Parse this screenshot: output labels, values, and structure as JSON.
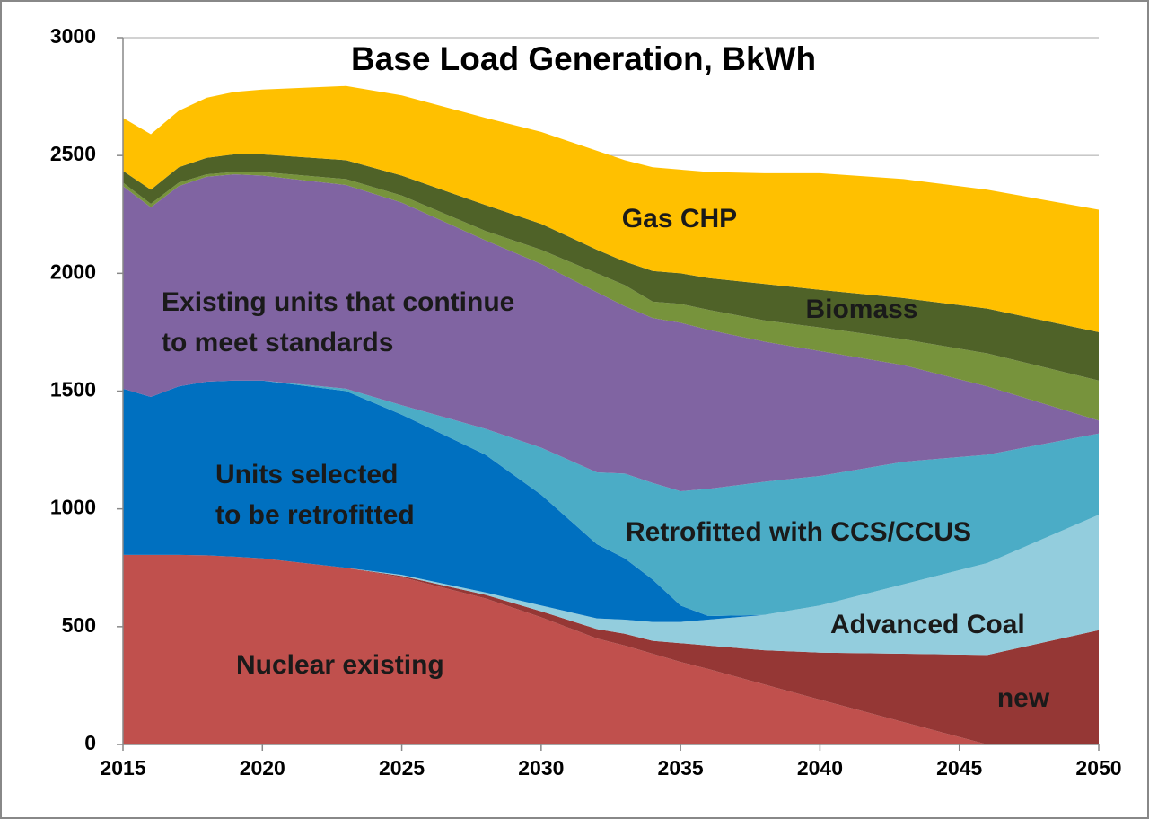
{
  "chart_data": {
    "type": "stacked_area",
    "title": "Base Load Generation, BkWh",
    "x": [
      2015,
      2016,
      2017,
      2018,
      2019,
      2020,
      2023,
      2025,
      2028,
      2030,
      2032,
      2033,
      2034,
      2035,
      2036,
      2038,
      2040,
      2043,
      2046,
      2050
    ],
    "series": [
      {
        "name": "Nuclear existing",
        "color": "#c0504d",
        "values": [
          805,
          805,
          805,
          803,
          797,
          790,
          750,
          710,
          620,
          540,
          450,
          420,
          385,
          350,
          320,
          255,
          190,
          95,
          0,
          0
        ]
      },
      {
        "name": "new",
        "color": "#953735",
        "values": [
          0,
          0,
          0,
          0,
          0,
          0,
          0,
          5,
          15,
          25,
          40,
          50,
          55,
          80,
          100,
          145,
          200,
          290,
          380,
          485
        ]
      },
      {
        "name": "Advanced Coal",
        "color": "#93cddd",
        "values": [
          0,
          0,
          0,
          0,
          0,
          0,
          0,
          5,
          10,
          25,
          45,
          60,
          80,
          90,
          110,
          150,
          200,
          295,
          390,
          490
        ]
      },
      {
        "name": "Units selected\nto be retrofitted",
        "color": "#0070c0",
        "values": [
          705,
          670,
          715,
          737,
          748,
          755,
          750,
          680,
          585,
          470,
          315,
          260,
          180,
          70,
          15,
          0,
          0,
          0,
          0,
          0
        ]
      },
      {
        "name": "Retrofitted with CCS/CCUS",
        "color": "#4bacc6",
        "values": [
          0,
          0,
          0,
          0,
          0,
          0,
          10,
          40,
          110,
          200,
          305,
          360,
          410,
          485,
          540,
          565,
          550,
          520,
          460,
          345
        ]
      },
      {
        "name": "Existing units that continue\nto meet standards",
        "color": "#8064a2",
        "values": [
          860,
          805,
          850,
          870,
          875,
          870,
          865,
          860,
          800,
          780,
          765,
          710,
          700,
          715,
          675,
          595,
          530,
          410,
          290,
          55
        ]
      },
      {
        "color": "#77933c",
        "values": [
          15,
          15,
          15,
          10,
          10,
          15,
          25,
          30,
          40,
          60,
          80,
          90,
          70,
          80,
          85,
          90,
          100,
          110,
          140,
          170
        ]
      },
      {
        "name": "Biomass",
        "color": "#4f6228",
        "values": [
          50,
          60,
          65,
          70,
          75,
          75,
          80,
          85,
          110,
          110,
          100,
          100,
          130,
          130,
          135,
          155,
          160,
          175,
          190,
          205
        ]
      },
      {
        "name": "Gas CHP",
        "color": "#ffc000",
        "values": [
          225,
          235,
          240,
          255,
          265,
          275,
          315,
          340,
          370,
          390,
          420,
          430,
          440,
          440,
          450,
          470,
          495,
          505,
          505,
          520
        ]
      }
    ],
    "xlim": [
      2015,
      2050
    ],
    "xticks": [
      2015,
      2020,
      2025,
      2030,
      2035,
      2040,
      2045,
      2050
    ],
    "ylim": [
      0,
      3000
    ],
    "yticks": [
      0,
      500,
      1000,
      1500,
      2000,
      2500,
      3000
    ],
    "grid": true
  }
}
